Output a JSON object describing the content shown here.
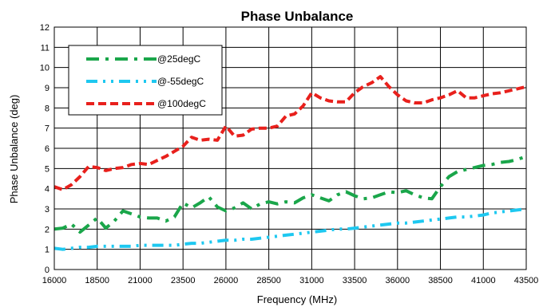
{
  "chart_data": {
    "type": "line",
    "title": "Phase Unbalance",
    "xlabel": "Frequency (MHz)",
    "ylabel": "Phase Unbalance (deg)",
    "xlim": [
      16000,
      43500
    ],
    "ylim": [
      0,
      12
    ],
    "xticks": [
      16000,
      18500,
      21000,
      23500,
      26000,
      28500,
      31000,
      33500,
      36000,
      38500,
      41000,
      43500
    ],
    "yticks": [
      0,
      1,
      2,
      3,
      4,
      5,
      6,
      7,
      8,
      9,
      10,
      11,
      12
    ],
    "grid": true,
    "legend_position": "top-left",
    "series": [
      {
        "name": "@25degC",
        "color": "#1aa64a",
        "style": "dash-dot",
        "x": [
          16000,
          16500,
          17000,
          17500,
          18000,
          18500,
          19000,
          19500,
          20000,
          20500,
          21000,
          21500,
          22000,
          22500,
          23000,
          23500,
          24000,
          24500,
          25000,
          25500,
          26000,
          26500,
          27000,
          27500,
          28000,
          28500,
          29000,
          29500,
          30000,
          30500,
          31000,
          31500,
          32000,
          32500,
          33000,
          33500,
          34000,
          34500,
          35000,
          35500,
          36000,
          36500,
          37000,
          37500,
          38000,
          38500,
          39000,
          39500,
          40000,
          40500,
          41000,
          41500,
          42000,
          42500,
          43000,
          43500
        ],
        "y": [
          2.0,
          2.05,
          2.25,
          1.85,
          2.2,
          2.55,
          2.05,
          2.4,
          2.9,
          2.75,
          2.6,
          2.55,
          2.55,
          2.4,
          2.6,
          3.3,
          3.05,
          3.3,
          3.6,
          3.1,
          2.9,
          3.05,
          3.3,
          3.0,
          3.25,
          3.35,
          3.25,
          3.35,
          3.3,
          3.55,
          3.7,
          3.55,
          3.4,
          3.7,
          3.85,
          3.65,
          3.5,
          3.55,
          3.7,
          3.85,
          3.8,
          3.9,
          3.7,
          3.55,
          3.5,
          4.1,
          4.6,
          4.85,
          4.95,
          5.05,
          5.15,
          5.2,
          5.3,
          5.35,
          5.45,
          5.6
        ]
      },
      {
        "name": "@-55degC",
        "color": "#1ec8f0",
        "style": "dash-dot-dot",
        "x": [
          16000,
          16500,
          17000,
          17500,
          18000,
          18500,
          19000,
          19500,
          20000,
          20500,
          21000,
          21500,
          22000,
          22500,
          23000,
          23500,
          24000,
          24500,
          25000,
          25500,
          26000,
          26500,
          27000,
          27500,
          28000,
          28500,
          29000,
          29500,
          30000,
          30500,
          31000,
          31500,
          32000,
          32500,
          33000,
          33500,
          34000,
          34500,
          35000,
          35500,
          36000,
          36500,
          37000,
          37500,
          38000,
          38500,
          39000,
          39500,
          40000,
          40500,
          41000,
          41500,
          42000,
          42500,
          43000,
          43500
        ],
        "y": [
          1.05,
          1.0,
          1.05,
          1.1,
          1.1,
          1.15,
          1.15,
          1.15,
          1.15,
          1.15,
          1.2,
          1.2,
          1.2,
          1.2,
          1.2,
          1.25,
          1.3,
          1.3,
          1.35,
          1.4,
          1.45,
          1.45,
          1.5,
          1.5,
          1.55,
          1.6,
          1.65,
          1.7,
          1.75,
          1.8,
          1.85,
          1.9,
          1.95,
          2.0,
          2.0,
          2.05,
          2.1,
          2.15,
          2.2,
          2.25,
          2.3,
          2.3,
          2.35,
          2.4,
          2.45,
          2.5,
          2.55,
          2.6,
          2.6,
          2.65,
          2.7,
          2.8,
          2.85,
          2.9,
          2.95,
          3.0
        ]
      },
      {
        "name": "@100degC",
        "color": "#e8201c",
        "style": "dash",
        "x": [
          16000,
          16500,
          17000,
          17500,
          18000,
          18500,
          19000,
          19500,
          20000,
          20500,
          21000,
          21500,
          22000,
          22500,
          23000,
          23500,
          24000,
          24500,
          25000,
          25500,
          26000,
          26500,
          27000,
          27500,
          28000,
          28500,
          29000,
          29500,
          30000,
          30500,
          31000,
          31500,
          32000,
          32500,
          33000,
          33500,
          34000,
          34500,
          35000,
          35500,
          36000,
          36500,
          37000,
          37500,
          38000,
          38500,
          39000,
          39500,
          40000,
          40500,
          41000,
          41500,
          42000,
          42500,
          43000,
          43500
        ],
        "y": [
          4.1,
          3.95,
          4.2,
          4.6,
          5.1,
          5.05,
          4.9,
          5.0,
          5.05,
          5.2,
          5.25,
          5.2,
          5.4,
          5.6,
          5.85,
          6.1,
          6.55,
          6.4,
          6.45,
          6.4,
          7.1,
          6.6,
          6.65,
          6.95,
          7.0,
          7.0,
          7.1,
          7.6,
          7.7,
          8.1,
          8.75,
          8.5,
          8.35,
          8.3,
          8.3,
          8.75,
          9.05,
          9.25,
          9.55,
          9.05,
          8.65,
          8.35,
          8.25,
          8.25,
          8.4,
          8.5,
          8.65,
          8.85,
          8.5,
          8.5,
          8.6,
          8.7,
          8.75,
          8.85,
          8.95,
          9.05
        ]
      }
    ]
  }
}
